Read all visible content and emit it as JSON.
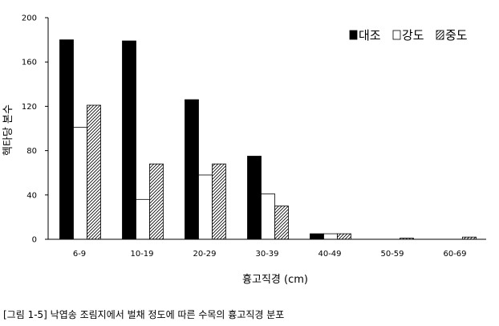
{
  "chart_data": {
    "type": "bar",
    "categories": [
      "6-9",
      "10-19",
      "20-29",
      "30-39",
      "40-49",
      "50-59",
      "60-69"
    ],
    "series": [
      {
        "name": "대조",
        "values": [
          180,
          179,
          126,
          75,
          5,
          0,
          0
        ],
        "fill": "#000000"
      },
      {
        "name": "강도",
        "values": [
          101,
          36,
          58,
          41,
          5,
          0,
          0
        ],
        "fill": "#ffffff"
      },
      {
        "name": "중도",
        "values": [
          121,
          68,
          68,
          30,
          5,
          1,
          2
        ],
        "fill": "hatch"
      }
    ],
    "ylim": [
      0,
      200
    ],
    "yticks": [
      0,
      40,
      80,
      120,
      160,
      200
    ],
    "xlabel": "흉고직경 (cm)",
    "ylabel": "헥타당 본수",
    "legend_position": "top-right",
    "grid": false
  },
  "caption": "[그림 1-5] 낙엽송 조림지에서 벌채 정도에 따른 수목의 흉고직경 분포"
}
